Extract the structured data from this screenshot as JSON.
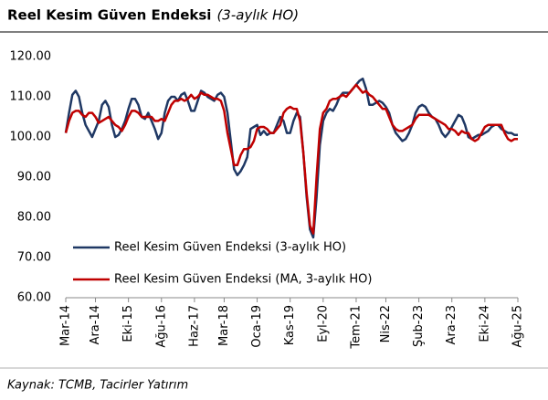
{
  "chart_data": {
    "type": "line",
    "title": "Reel Kesim Güven Endeksi",
    "subtitle": "(3-aylık HO)",
    "source": "Kaynak: TCMB, Tacirler Yatırım",
    "categories": [
      "Mar-14",
      null,
      null,
      null,
      null,
      null,
      null,
      null,
      null,
      "Ara-14",
      null,
      null,
      null,
      null,
      null,
      null,
      null,
      null,
      null,
      "Eki-15",
      null,
      null,
      null,
      null,
      null,
      null,
      null,
      null,
      null,
      "Ağu-16",
      null,
      null,
      null,
      null,
      null,
      null,
      null,
      null,
      null,
      "Haz-17",
      null,
      null,
      null,
      null,
      null,
      null,
      null,
      null,
      "Mar-18",
      null,
      null,
      null,
      null,
      null,
      null,
      null,
      null,
      null,
      "Oca-19",
      null,
      null,
      null,
      null,
      null,
      null,
      null,
      null,
      null,
      "Kas-19",
      null,
      null,
      null,
      null,
      null,
      null,
      null,
      null,
      null,
      "Eyl-20",
      null,
      null,
      null,
      null,
      null,
      null,
      null,
      null,
      null,
      "Tem-21",
      null,
      null,
      null,
      null,
      null,
      null,
      null,
      null,
      "Nis-22",
      null,
      null,
      null,
      null,
      null,
      null,
      null,
      null,
      null,
      "Şub-23",
      null,
      null,
      null,
      null,
      null,
      null,
      null,
      null,
      null,
      "Ara-23",
      null,
      null,
      null,
      null,
      null,
      null,
      null,
      null,
      null,
      "Eki-24",
      null,
      null,
      null,
      null,
      null,
      null,
      null,
      null,
      null,
      "Ağu-25"
    ],
    "series": [
      {
        "name": "Reel Kesim Güven Endeksi (3-aylık HO)",
        "color": "#1f3864",
        "values": [
          101,
          106,
          110.5,
          111.5,
          110,
          106,
          103,
          101.5,
          100,
          102,
          104,
          108,
          109,
          107.5,
          103,
          100,
          100.5,
          102,
          104,
          107,
          109.5,
          109.5,
          108,
          105,
          104.5,
          106,
          104,
          102,
          99.5,
          101,
          106,
          109,
          110,
          110,
          109,
          110.5,
          111,
          109,
          106.5,
          106.5,
          109,
          111.5,
          111,
          110,
          109.5,
          109,
          110.5,
          111,
          110,
          106,
          99,
          92,
          90.5,
          91.5,
          93,
          95,
          102,
          102.5,
          103,
          100.5,
          101.5,
          100.5,
          101,
          101,
          103,
          105,
          104,
          101,
          101,
          104,
          106,
          105,
          96,
          85,
          77,
          75,
          85,
          98,
          104,
          106,
          107,
          106.5,
          108,
          110,
          111,
          111,
          111,
          112,
          113,
          114,
          114.5,
          112,
          108,
          108,
          108.5,
          109,
          108.5,
          107.5,
          106,
          103,
          101,
          100,
          99,
          99.5,
          101,
          103,
          106,
          107.5,
          108,
          107.5,
          106,
          105,
          104.5,
          103,
          101,
          100,
          101,
          102.5,
          104,
          105.5,
          105,
          103,
          100,
          99.5,
          100,
          100.5,
          100.5,
          101,
          101.5,
          102.5,
          103,
          103,
          102,
          101.5,
          101,
          101,
          100.5,
          100.5
        ]
      },
      {
        "name": "Reel Kesim Güven Endeksi (MA, 3-aylık HO)",
        "color": "#c00000",
        "values": [
          101,
          104,
          106,
          106.5,
          106.5,
          105.5,
          105,
          106,
          106,
          105,
          103.5,
          104,
          104.5,
          105,
          104,
          103,
          102.5,
          101.5,
          103,
          105,
          106.5,
          106.5,
          106,
          105,
          105,
          105,
          105,
          104,
          104,
          104.5,
          104,
          106,
          108,
          109,
          109,
          109.5,
          109,
          109.5,
          110.5,
          109.5,
          110,
          111,
          110.5,
          110.5,
          110,
          109.5,
          109.5,
          109,
          106.5,
          101,
          97,
          93,
          93,
          95.5,
          97,
          97,
          97.5,
          99,
          102,
          102.5,
          102.5,
          102,
          101,
          101,
          102,
          103,
          106,
          107,
          107.5,
          107,
          107,
          104,
          96,
          86,
          78,
          76,
          90,
          102,
          106,
          107,
          109,
          109.5,
          109.5,
          110,
          110.5,
          110,
          111,
          112,
          113,
          112,
          111,
          111.5,
          110.5,
          110,
          109,
          108,
          107,
          107,
          105,
          103,
          102,
          101.5,
          101.5,
          102,
          102.5,
          103,
          104.5,
          105.5,
          105.5,
          105.5,
          105.5,
          105,
          104.5,
          104,
          103.5,
          103,
          102,
          102,
          101.5,
          100.5,
          101.5,
          101,
          101,
          99.5,
          99,
          99.5,
          101,
          102.5,
          103,
          103,
          103,
          103,
          103,
          101,
          99.5,
          99,
          99.5,
          99.5
        ]
      }
    ],
    "ylim": [
      60,
      120
    ],
    "yticks": [
      {
        "value": 60,
        "label": "60.00"
      },
      {
        "value": 70,
        "label": "70.00"
      },
      {
        "value": 80,
        "label": "80.00"
      },
      {
        "value": 90,
        "label": "90.00"
      },
      {
        "value": 100,
        "label": "100.00"
      },
      {
        "value": 110,
        "label": "110.00"
      },
      {
        "value": 120,
        "label": "120.00"
      }
    ],
    "grid": false,
    "legend": "lower left"
  }
}
